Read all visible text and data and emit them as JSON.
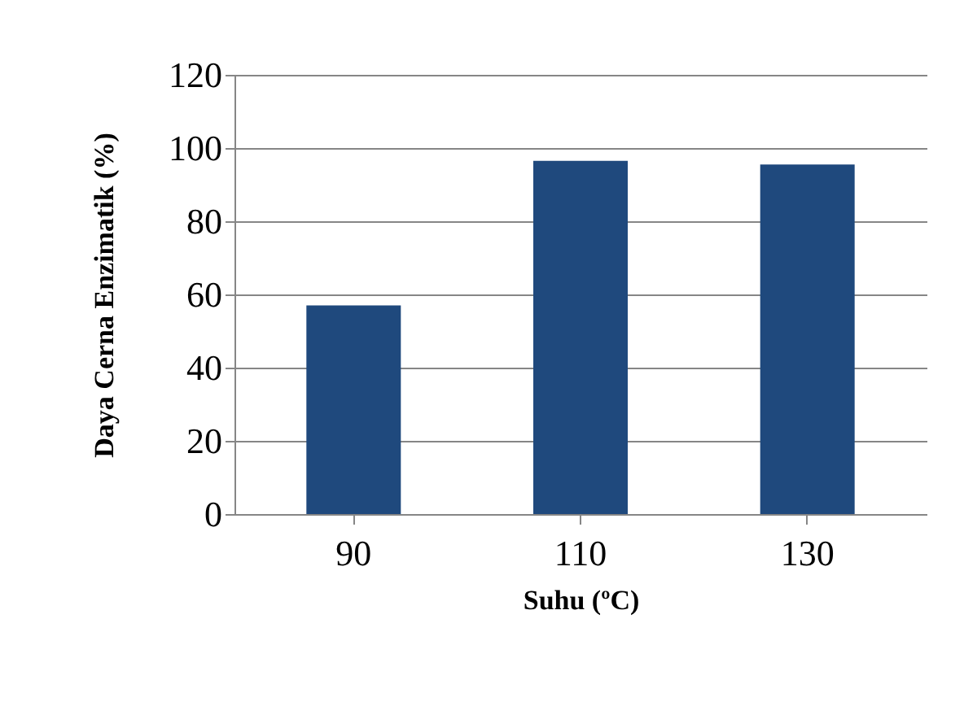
{
  "chart_data": {
    "type": "bar",
    "xlabel": "Suhu (ºC)",
    "ylabel": "Daya Cerna Enzimatik (%)",
    "categories": [
      "90",
      "110",
      "130"
    ],
    "values": [
      57,
      96.5,
      95.5
    ],
    "color": "#1f497d",
    "ylim": [
      0,
      120
    ],
    "yticks": [
      0,
      20,
      40,
      60,
      80,
      100,
      120
    ],
    "grid": "y"
  }
}
